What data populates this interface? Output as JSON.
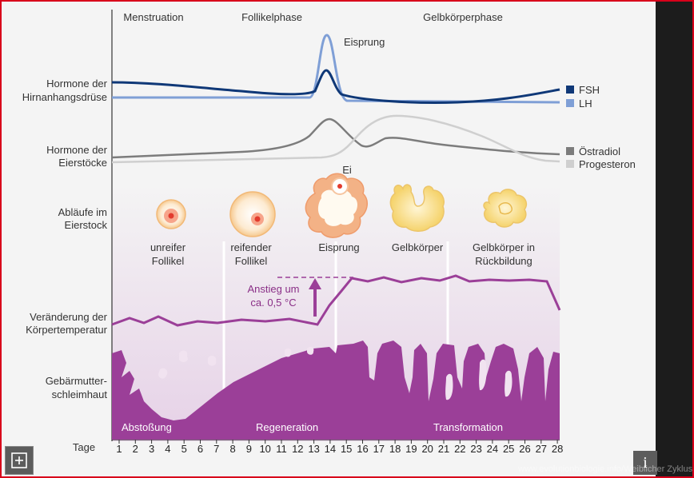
{
  "phases": {
    "menstruation": "Menstruation",
    "follikel": "Follikelphase",
    "gelbkoerper": "Gelbkörperphase"
  },
  "row_labels": {
    "hirn": [
      "Hormone der",
      "Hirnanhangsdrüse"
    ],
    "eier": [
      "Hormone der",
      "Eierstöcke"
    ],
    "ablaeufe": [
      "Abläufe im",
      "Eierstock"
    ],
    "temp": [
      "Veränderung der",
      "Körpertemperatur"
    ],
    "schleim": [
      "Gebärmutter-",
      "schleimhaut"
    ],
    "tage": "Tage"
  },
  "legend": {
    "fsh": {
      "label": "FSH",
      "color": "#0f3877"
    },
    "lh": {
      "label": "LH",
      "color": "#7f9fd6"
    },
    "oestradiol": {
      "label": "Östradiol",
      "color": "#7c7c7c"
    },
    "progesteron": {
      "label": "Progesteron",
      "color": "#cfcfcf"
    }
  },
  "annotations": {
    "eisprung_peak": "Eisprung",
    "ei": "Ei",
    "anstieg": [
      "Anstieg um",
      "ca. 0,5 °C"
    ]
  },
  "stages": {
    "unreif": [
      "unreifer",
      "Follikel"
    ],
    "reifend": [
      "reifender",
      "Follikel"
    ],
    "eisprung": [
      "Eisprung"
    ],
    "gelbkoerper": [
      "Gelbkörper"
    ],
    "rueckbildung": [
      "Gelbkörper in",
      "Rückbildung"
    ]
  },
  "endometrium": {
    "abstossung": "Abstoßung",
    "regeneration": "Regeneration",
    "transformation": "Transformation"
  },
  "days": [
    "1",
    "2",
    "3",
    "4",
    "5",
    "6",
    "7",
    "8",
    "9",
    "10",
    "11",
    "12",
    "13",
    "14",
    "15",
    "16",
    "17",
    "18",
    "19",
    "20",
    "21",
    "22",
    "23",
    "24",
    "25",
    "26",
    "27",
    "28"
  ],
  "colors": {
    "purple": "#9b3f98",
    "purple_light": "#e9d7ea",
    "frame_red": "#d8001a"
  },
  "watermark": "www.evolutionbiologie.info/Weiblicher Zyklus"
}
